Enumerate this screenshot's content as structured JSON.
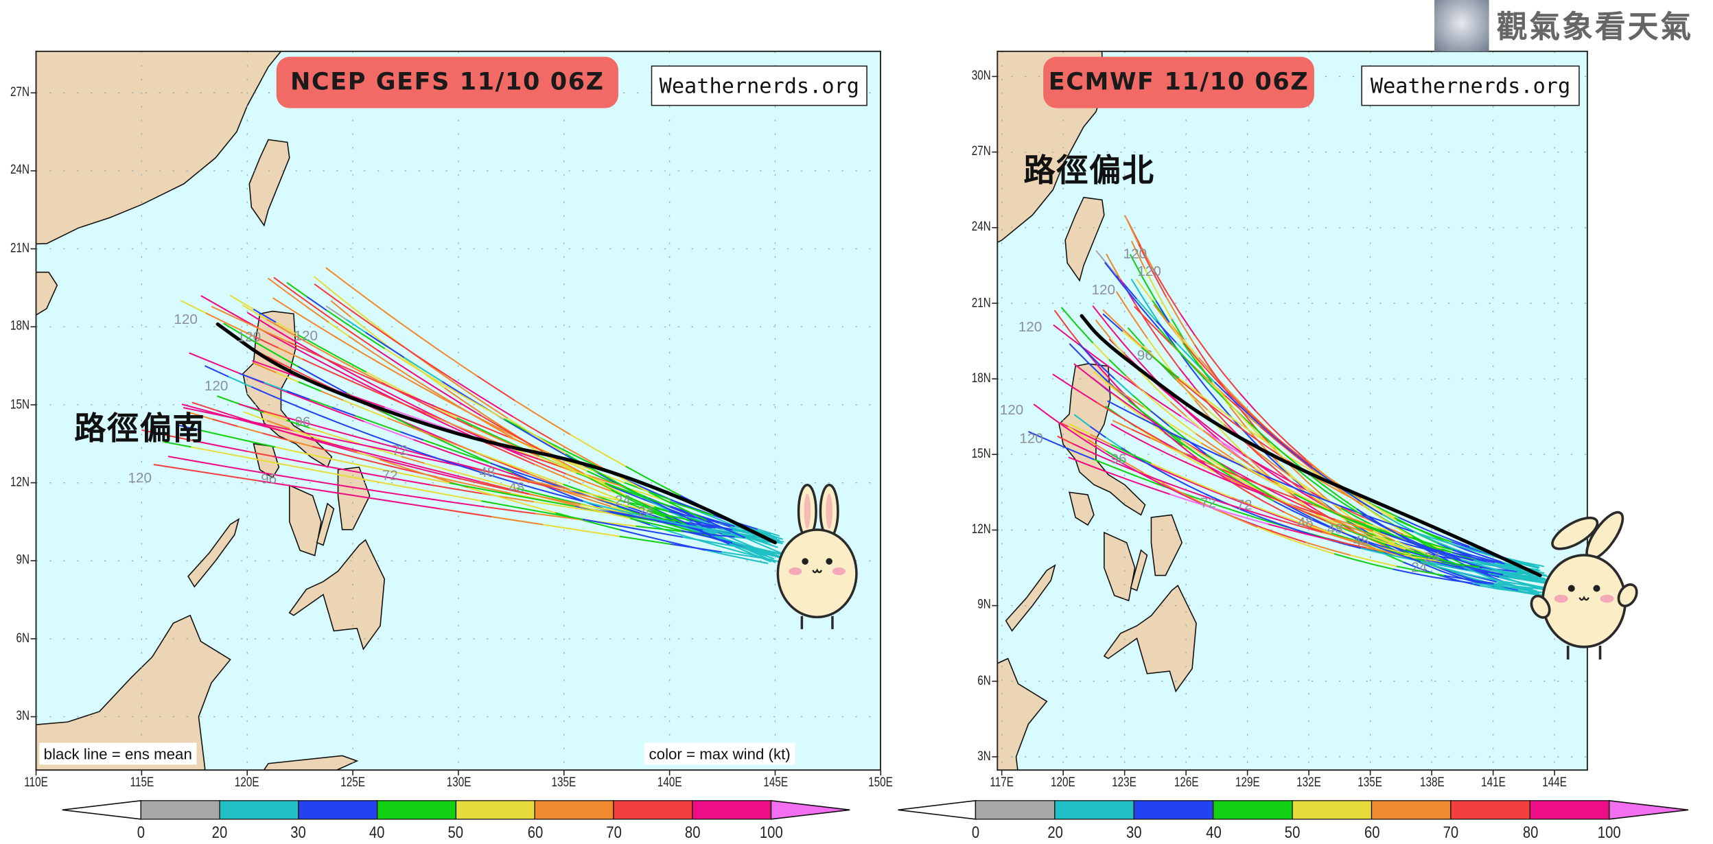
{
  "watermark": {
    "text": "觀氣象看天氣",
    "icon": "typhoon-satellite-thumbnail"
  },
  "maps": [
    {
      "title": "NCEP GEFS 11/10 06Z",
      "credit": "Weathernerds.org",
      "annotation": "路徑偏南",
      "legend_left": "black line = ens mean",
      "legend_right": "color = max wind (kt)",
      "lon_ticks": [
        "110E",
        "115E",
        "120E",
        "125E",
        "130E",
        "135E",
        "140E",
        "145E",
        "150E"
      ],
      "lat_ticks": [
        "27N",
        "24N",
        "21N",
        "18N",
        "15N",
        "12N",
        "9N",
        "6N",
        "3N"
      ],
      "hour_labels": [
        "120",
        "120",
        "120",
        "120",
        "120",
        "96",
        "96",
        "72",
        "72",
        "48",
        "48",
        "24",
        "24"
      ]
    },
    {
      "title": "ECMWF 11/10 06Z",
      "credit": "Weathernerds.org",
      "annotation": "路徑偏北",
      "lon_ticks": [
        "117E",
        "120E",
        "123E",
        "126E",
        "129E",
        "132E",
        "135E",
        "138E",
        "141E",
        "144E"
      ],
      "lat_ticks": [
        "30N",
        "27N",
        "24N",
        "21N",
        "18N",
        "15N",
        "12N",
        "9N",
        "6N",
        "3N"
      ],
      "hour_labels": [
        "120",
        "120",
        "120",
        "120",
        "120",
        "120",
        "96",
        "96",
        "72",
        "72",
        "48",
        "48",
        "48",
        "24",
        "24"
      ]
    }
  ],
  "colorbar": {
    "labels": [
      "0",
      "20",
      "30",
      "40",
      "50",
      "60",
      "70",
      "80",
      "100"
    ],
    "colors": [
      "#a8a8a8",
      "#1fc0c4",
      "#2342f0",
      "#12d012",
      "#e6dd3c",
      "#ef8a2e",
      "#f43f3f",
      "#ee0d86",
      "#f46ef0"
    ],
    "under_color": "#ffffff"
  },
  "theme": {
    "ocean": "#d8fbff",
    "land": "#ecd5b4",
    "mean_track": "#000000",
    "badge": "#f26a66"
  }
}
